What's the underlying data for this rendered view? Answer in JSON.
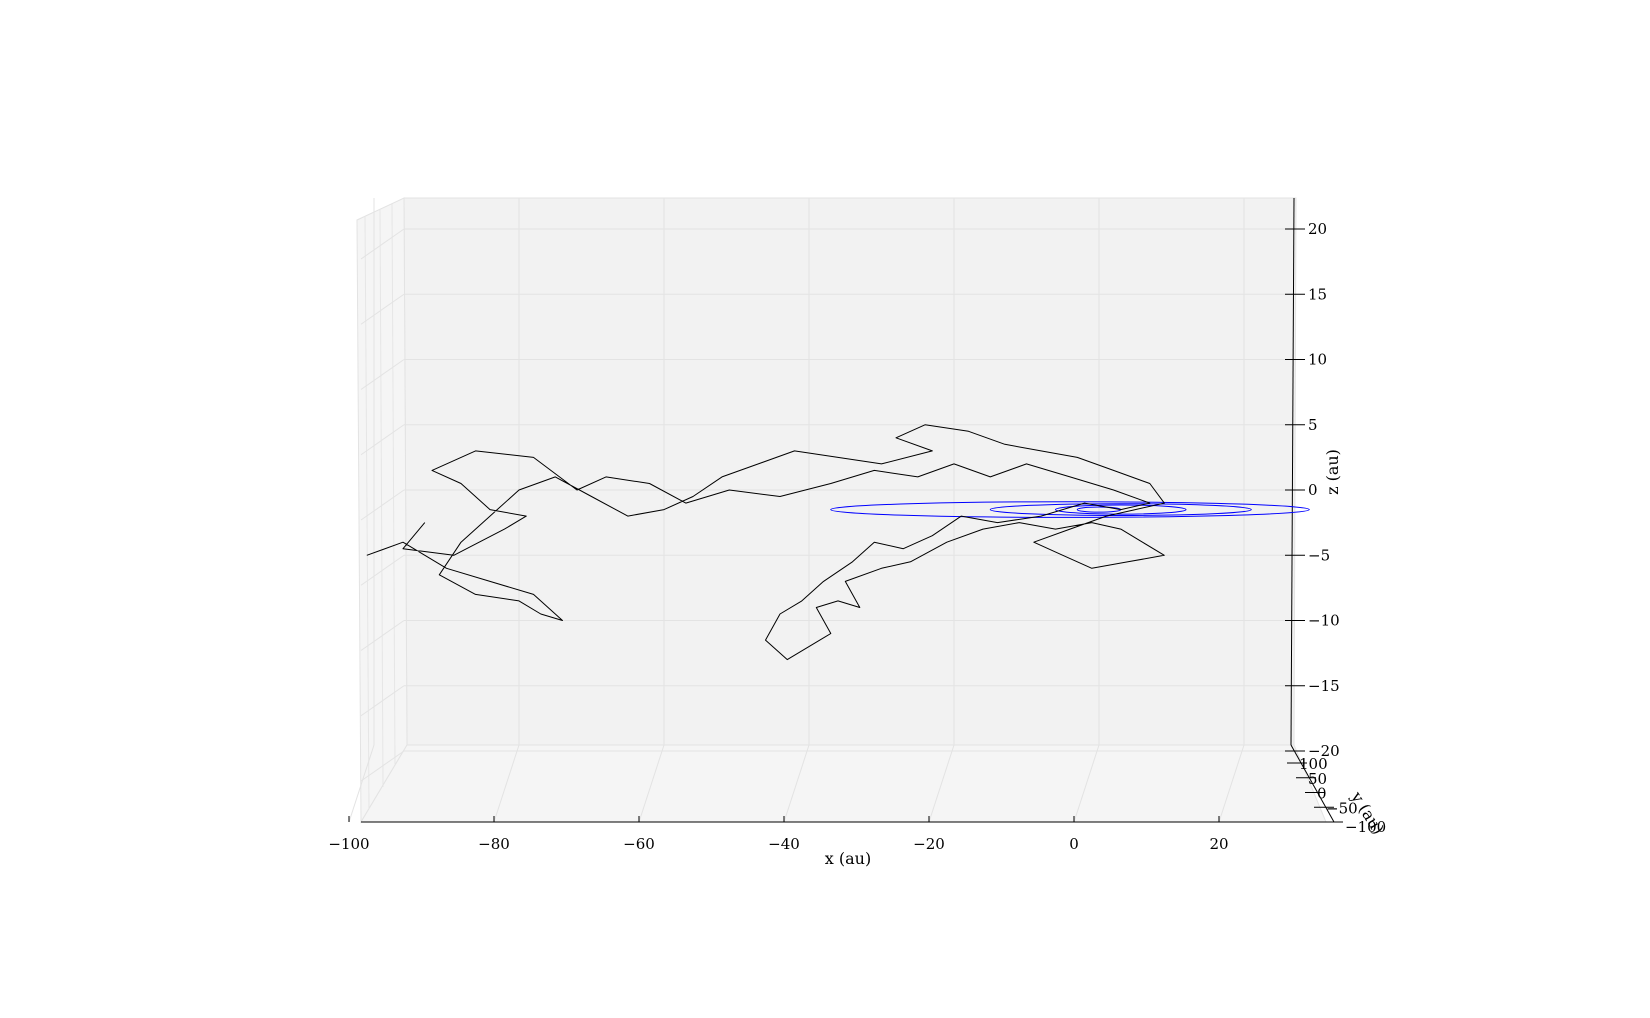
{
  "chart_data": {
    "type": "line",
    "title": "",
    "projection": "3d",
    "xlabel": "x (au)",
    "ylabel": "y (au)",
    "zlabel": "z (au)",
    "xlim": [
      -102,
      32
    ],
    "ylim": [
      -100,
      100
    ],
    "zlim": [
      -20.5,
      20.5
    ],
    "x_ticks": [
      -100,
      -80,
      -60,
      -40,
      -20,
      0,
      20
    ],
    "x_tick_labels": [
      "−100",
      "−80",
      "−60",
      "−40",
      "−20",
      "0",
      "20"
    ],
    "y_ticks": [
      100,
      50,
      0,
      -50,
      -100
    ],
    "y_tick_labels": [
      "100",
      "50",
      "0",
      "−50",
      "−100"
    ],
    "z_ticks": [
      20,
      15,
      10,
      5,
      0,
      -5,
      -10,
      -15,
      -20
    ],
    "z_tick_labels": [
      "20",
      "15",
      "10",
      "5",
      "0",
      "−5",
      "−10",
      "−15",
      "−20"
    ],
    "grid": true,
    "series": [
      {
        "color": "#000000",
        "style": "random-walk trajectory",
        "points": [
          [
            -93,
            -2.5
          ],
          [
            -96,
            -4.5
          ],
          [
            -89,
            -5
          ],
          [
            -82,
            -3
          ],
          [
            -79,
            -2
          ],
          [
            -84,
            -1.5
          ],
          [
            -88,
            0.5
          ],
          [
            -92,
            1.5
          ],
          [
            -86,
            3
          ],
          [
            -78,
            2.5
          ],
          [
            -72,
            0
          ],
          [
            -68,
            1
          ],
          [
            -62,
            0.5
          ],
          [
            -57,
            -1
          ],
          [
            -51,
            0
          ],
          [
            -44,
            -0.5
          ],
          [
            -37,
            0.5
          ],
          [
            -31,
            1.5
          ],
          [
            -25,
            1
          ],
          [
            -20,
            2
          ],
          [
            -15,
            1
          ],
          [
            -10,
            2
          ],
          [
            -4,
            1
          ],
          [
            2,
            0
          ],
          [
            7,
            -1
          ],
          [
            3,
            -1.5
          ],
          [
            -2,
            -1
          ],
          [
            -8,
            -2
          ],
          [
            -14,
            -2.5
          ],
          [
            -19,
            -2
          ],
          [
            -23,
            -3.5
          ],
          [
            -27,
            -4.5
          ],
          [
            -31,
            -4
          ],
          [
            -34,
            -5.5
          ],
          [
            -38,
            -7
          ],
          [
            -41,
            -8.5
          ],
          [
            -44,
            -9.5
          ],
          [
            -46,
            -11.5
          ],
          [
            -43,
            -13
          ],
          [
            -40,
            -12
          ],
          [
            -37,
            -11
          ],
          [
            -39,
            -9
          ],
          [
            -36,
            -8.5
          ],
          [
            -33,
            -9
          ],
          [
            -35,
            -7
          ],
          [
            -30,
            -6
          ],
          [
            -26,
            -5.5
          ],
          [
            -21,
            -4
          ],
          [
            -16,
            -3
          ],
          [
            -11,
            -2.5
          ],
          [
            -6,
            -3
          ],
          [
            -1,
            -2.5
          ],
          [
            3,
            -3
          ],
          [
            6,
            -4
          ],
          [
            9,
            -5
          ],
          [
            4,
            -5.5
          ],
          [
            -1,
            -6
          ],
          [
            -5,
            -5
          ],
          [
            -9,
            -4
          ],
          [
            -4,
            -3
          ],
          [
            1,
            -2
          ],
          [
            5,
            -1.5
          ],
          [
            9,
            -1
          ],
          [
            7,
            0.5
          ],
          [
            2,
            1.5
          ],
          [
            -3,
            2.5
          ],
          [
            -8,
            3
          ],
          [
            -13,
            3.5
          ],
          [
            -18,
            4.5
          ],
          [
            -24,
            5
          ],
          [
            -28,
            4
          ],
          [
            -23,
            3
          ],
          [
            -30,
            2
          ],
          [
            -36,
            2.5
          ],
          [
            -42,
            3
          ],
          [
            -47,
            2
          ],
          [
            -52,
            1
          ],
          [
            -56,
            -0.5
          ],
          [
            -60,
            -1.5
          ],
          [
            -65,
            -2
          ],
          [
            -70,
            -0.5
          ],
          [
            -75,
            1
          ],
          [
            -80,
            0
          ],
          [
            -84,
            -2
          ],
          [
            -88,
            -4
          ],
          [
            -91,
            -6.5
          ],
          [
            -86,
            -8
          ],
          [
            -80,
            -8.5
          ],
          [
            -77,
            -9.5
          ],
          [
            -74,
            -10
          ],
          [
            -78,
            -8
          ],
          [
            -84,
            -7
          ],
          [
            -90,
            -6
          ],
          [
            -96,
            -4
          ],
          [
            -101,
            -5
          ]
        ]
      },
      {
        "color": "#0000ff",
        "style": "elliptical orbits",
        "orbits": [
          {
            "center": [
              -4,
              -1.5
            ],
            "semi_major": 33,
            "semi_minor": 0.6
          },
          {
            "center": [
              3,
              -1.5
            ],
            "semi_major": 18,
            "semi_minor": 0.45
          },
          {
            "center": [
              3,
              -1.5
            ],
            "semi_major": 9,
            "semi_minor": 0.35
          },
          {
            "center": [
              0,
              -1.5
            ],
            "semi_major": 3,
            "semi_minor": 0.2
          }
        ]
      }
    ]
  }
}
